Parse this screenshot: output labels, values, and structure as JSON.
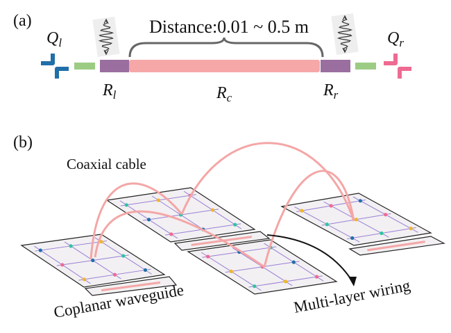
{
  "panel_a": {
    "label": "(a)",
    "distance_label": "Distance:0.01 ~ 0.5 m",
    "qubit_left": {
      "symbol": "Q",
      "sub": "l",
      "color": "#1f6fa8"
    },
    "qubit_right": {
      "symbol": "Q",
      "sub": "r",
      "color": "#ee6a92"
    },
    "resonator_left": {
      "symbol": "R",
      "sub": "l",
      "color": "#9a6fa0"
    },
    "resonator_center": {
      "symbol": "R",
      "sub": "c",
      "color": "#f6a7a7"
    },
    "resonator_right": {
      "symbol": "R",
      "sub": "r",
      "color": "#9a6fa0"
    },
    "coupler_color": "#9ccc84"
  },
  "panel_b": {
    "label": "(b)",
    "coaxial_label": "Coaxial cable",
    "coplanar_label": "Coplanar waveguide",
    "multilayer_label": "Multi-layer wiring",
    "cable_color": "#f4a6a6",
    "grid_color": "#9a7fd6",
    "node_colors": [
      "#1f6fa8",
      "#2fc4a0",
      "#f0b62a",
      "#ee6a92"
    ]
  }
}
